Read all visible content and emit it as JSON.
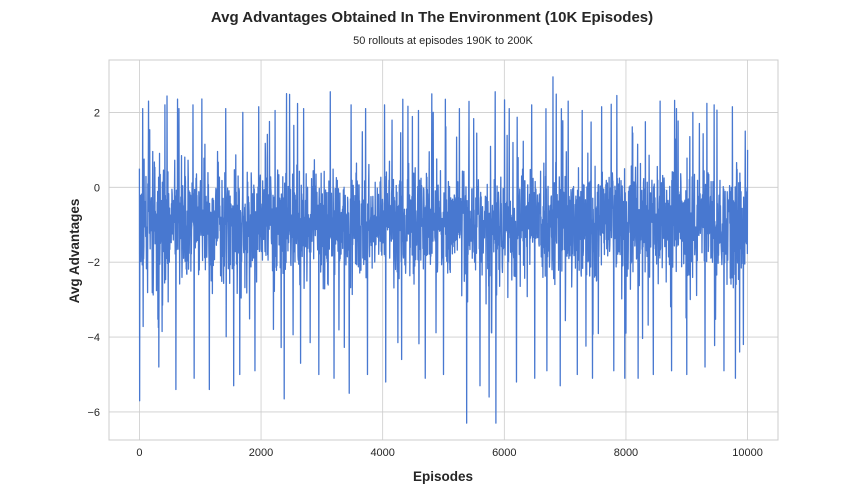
{
  "chart_data": {
    "type": "line",
    "title": "Avg Advantages Obtained In The Environment (10K Episodes)",
    "subtitle": "50 rollouts at episodes 190K to 200K",
    "xlabel": "Episodes",
    "ylabel": "Avg Advantages",
    "xlim": [
      -500,
      10500
    ],
    "ylim": [
      -6.75,
      3.4
    ],
    "x_ticks": [
      0,
      2000,
      4000,
      6000,
      8000,
      10000
    ],
    "y_ticks": [
      2,
      0,
      -2,
      -4,
      -6
    ],
    "grid": true,
    "legend": "none",
    "series": [
      {
        "color": "#4878d0",
        "summary": {
          "n_points": 10000,
          "x_start": 0,
          "x_end": 10000,
          "typical_min": -3.5,
          "typical_max": 1.5,
          "overall_min": -6.3,
          "overall_max": 2.95
        },
        "peaks": [
          [
            5,
            -5.7
          ],
          [
            55,
            2.1
          ],
          [
            150,
            2.3
          ],
          [
            420,
            2.2
          ],
          [
            650,
            2.1
          ],
          [
            880,
            2.2
          ],
          [
            1150,
            2.05
          ],
          [
            1420,
            2.1
          ],
          [
            1700,
            2.0
          ],
          [
            1960,
            2.15
          ],
          [
            2230,
            2.05
          ],
          [
            2420,
            2.5
          ],
          [
            2700,
            2.1
          ],
          [
            2950,
            2.0
          ],
          [
            3140,
            2.55
          ],
          [
            3480,
            2.2
          ],
          [
            3720,
            2.1
          ],
          [
            4030,
            2.2
          ],
          [
            4330,
            2.35
          ],
          [
            4590,
            2.05
          ],
          [
            4830,
            2.0
          ],
          [
            5030,
            2.35
          ],
          [
            5260,
            2.1
          ],
          [
            5600,
            2.05
          ],
          [
            5850,
            2.55
          ],
          [
            6080,
            2.1
          ],
          [
            6450,
            2.2
          ],
          [
            6800,
            2.95
          ],
          [
            7050,
            2.3
          ],
          [
            7280,
            2.05
          ],
          [
            7600,
            2.15
          ],
          [
            7850,
            2.45
          ],
          [
            8200,
            2.3
          ],
          [
            8560,
            2.3
          ],
          [
            8830,
            2.1
          ],
          [
            9100,
            2.0
          ],
          [
            9450,
            2.2
          ],
          [
            9750,
            2.15
          ],
          [
            9960,
            1.5
          ]
        ],
        "troughs": [
          [
            320,
            -4.8
          ],
          [
            600,
            -5.4
          ],
          [
            900,
            -5.1
          ],
          [
            1150,
            -5.4
          ],
          [
            1550,
            -5.3
          ],
          [
            1650,
            -5.0
          ],
          [
            1900,
            -4.9
          ],
          [
            2380,
            -5.65
          ],
          [
            2650,
            -4.7
          ],
          [
            2950,
            -5.0
          ],
          [
            3200,
            -5.1
          ],
          [
            3450,
            -5.5
          ],
          [
            3750,
            -5.0
          ],
          [
            4050,
            -5.2
          ],
          [
            4310,
            -4.6
          ],
          [
            4700,
            -5.1
          ],
          [
            5000,
            -5.0
          ],
          [
            5380,
            -6.3
          ],
          [
            5600,
            -5.3
          ],
          [
            5750,
            -5.6
          ],
          [
            5860,
            -6.3
          ],
          [
            6200,
            -5.2
          ],
          [
            6500,
            -5.1
          ],
          [
            6700,
            -4.9
          ],
          [
            6920,
            -5.3
          ],
          [
            7200,
            -5.0
          ],
          [
            7450,
            -5.1
          ],
          [
            7800,
            -4.9
          ],
          [
            7980,
            -5.1
          ],
          [
            8200,
            -5.1
          ],
          [
            8450,
            -5.0
          ],
          [
            8750,
            -4.9
          ],
          [
            9000,
            -5.0
          ],
          [
            9300,
            -4.8
          ],
          [
            9610,
            -4.9
          ],
          [
            9800,
            -5.1
          ],
          [
            9870,
            -4.4
          ]
        ]
      }
    ]
  }
}
